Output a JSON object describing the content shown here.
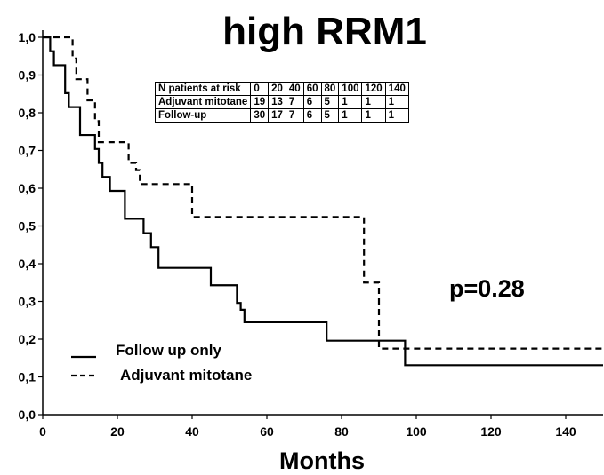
{
  "chart_data": {
    "type": "line",
    "step": true,
    "title": "high RRM1",
    "xlabel": "Months",
    "ylabel": "",
    "xlim": [
      0,
      150
    ],
    "ylim": [
      0,
      1.0
    ],
    "x_ticks": [
      "0",
      "20",
      "40",
      "60",
      "80",
      "100",
      "120",
      "140"
    ],
    "y_ticks": [
      "0,0",
      "0,1",
      "0,2",
      "0,3",
      "0,4",
      "0,5",
      "0,6",
      "0,7",
      "0,8",
      "0,9",
      "1,0"
    ],
    "grid": false,
    "annotation": "p=0.28",
    "legend_placement": "bottom-left",
    "series": [
      {
        "name": "Follow up only",
        "line_style": "solid",
        "x": [
          2,
          3,
          6,
          7,
          10,
          14,
          15,
          16,
          18,
          22,
          27,
          29,
          31,
          45,
          52,
          53,
          54,
          76,
          97,
          150
        ],
        "y": [
          0.963,
          0.926,
          0.852,
          0.815,
          0.741,
          0.704,
          0.667,
          0.63,
          0.593,
          0.519,
          0.481,
          0.444,
          0.389,
          0.343,
          0.296,
          0.278,
          0.245,
          0.196,
          0.131,
          0.131
        ]
      },
      {
        "name": "Adjuvant mitotane",
        "line_style": "dashed",
        "x": [
          3,
          8,
          9,
          12,
          14,
          15,
          23,
          25,
          26,
          40,
          86,
          87,
          89,
          90,
          150
        ],
        "y": [
          1.0,
          0.944,
          0.889,
          0.833,
          0.778,
          0.722,
          0.667,
          0.648,
          0.611,
          0.524,
          0.35,
          0.35,
          0.35,
          0.175,
          0.175
        ]
      }
    ],
    "risk_table": {
      "header": [
        "N patients at risk",
        "0",
        "20",
        "40",
        "60",
        "80",
        "100",
        "120",
        "140"
      ],
      "rows": [
        [
          "Adjuvant mitotane",
          "19",
          "13",
          "7",
          "6",
          "5",
          "1",
          "1",
          "1"
        ],
        [
          "Follow-up",
          "30",
          "17",
          "7",
          "6",
          "5",
          "1",
          "1",
          "1"
        ]
      ]
    }
  }
}
